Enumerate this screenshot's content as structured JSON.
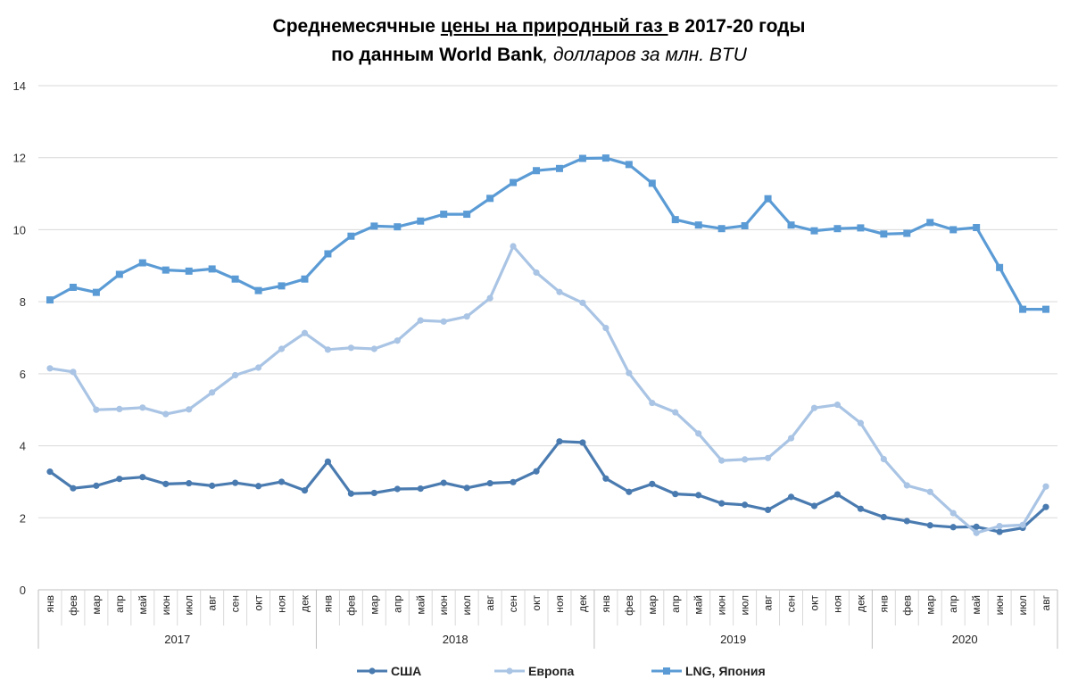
{
  "title": {
    "line1_a": "Среднемесячные ",
    "line1_b": "цены на природный газ ",
    "line1_c": "в 2017-20 годы",
    "line2_a": "по данным World Bank",
    "line2_b": ", долларов за млн. BTU"
  },
  "chart_data": {
    "type": "line",
    "ylim": [
      0,
      14
    ],
    "yticks": [
      0,
      2,
      4,
      6,
      8,
      10,
      12,
      14
    ],
    "grid": true,
    "legend_position": "bottom",
    "months": [
      "янв",
      "фев",
      "мар",
      "апр",
      "май",
      "июн",
      "июл",
      "авг",
      "сен",
      "окт",
      "ноя",
      "дек"
    ],
    "years": [
      {
        "label": "2017",
        "n": 12
      },
      {
        "label": "2018",
        "n": 12
      },
      {
        "label": "2019",
        "n": 12
      },
      {
        "label": "2020",
        "n": 8
      }
    ],
    "series": [
      {
        "name": "США",
        "color": "#4a7bb0",
        "marker": "circle",
        "values": [
          3.28,
          2.82,
          2.89,
          3.08,
          3.13,
          2.94,
          2.96,
          2.89,
          2.97,
          2.88,
          3.0,
          2.76,
          3.56,
          2.67,
          2.69,
          2.8,
          2.81,
          2.97,
          2.83,
          2.96,
          2.99,
          3.29,
          4.12,
          4.09,
          3.09,
          2.72,
          2.94,
          2.66,
          2.63,
          2.4,
          2.36,
          2.22,
          2.58,
          2.33,
          2.65,
          2.25,
          2.02,
          1.91,
          1.79,
          1.74,
          1.75,
          1.61,
          1.72,
          2.3
        ]
      },
      {
        "name": "Европа",
        "color": "#a9c4e4",
        "marker": "circle",
        "values": [
          6.15,
          6.05,
          5.0,
          5.02,
          5.06,
          4.88,
          5.01,
          5.48,
          5.96,
          6.17,
          6.69,
          7.13,
          6.67,
          6.72,
          6.69,
          6.92,
          7.48,
          7.45,
          7.59,
          8.1,
          9.54,
          8.81,
          8.27,
          7.97,
          7.27,
          6.02,
          5.19,
          4.93,
          4.34,
          3.59,
          3.62,
          3.66,
          4.21,
          5.05,
          5.14,
          4.63,
          3.63,
          2.9,
          2.72,
          2.13,
          1.58,
          1.77,
          1.8,
          2.87
        ]
      },
      {
        "name": "LNG, Япония",
        "color": "#5b9bd5",
        "marker": "square",
        "values": [
          8.05,
          8.4,
          8.26,
          8.76,
          9.08,
          8.88,
          8.85,
          8.91,
          8.63,
          8.31,
          8.44,
          8.63,
          9.33,
          9.82,
          10.1,
          10.08,
          10.24,
          10.43,
          10.43,
          10.87,
          11.31,
          11.64,
          11.7,
          11.98,
          11.99,
          11.81,
          11.29,
          10.28,
          10.13,
          10.03,
          10.11,
          10.86,
          10.13,
          9.97,
          10.03,
          10.05,
          9.88,
          9.9,
          10.2,
          10.0,
          10.06,
          8.95,
          7.79,
          7.79
        ]
      }
    ]
  }
}
